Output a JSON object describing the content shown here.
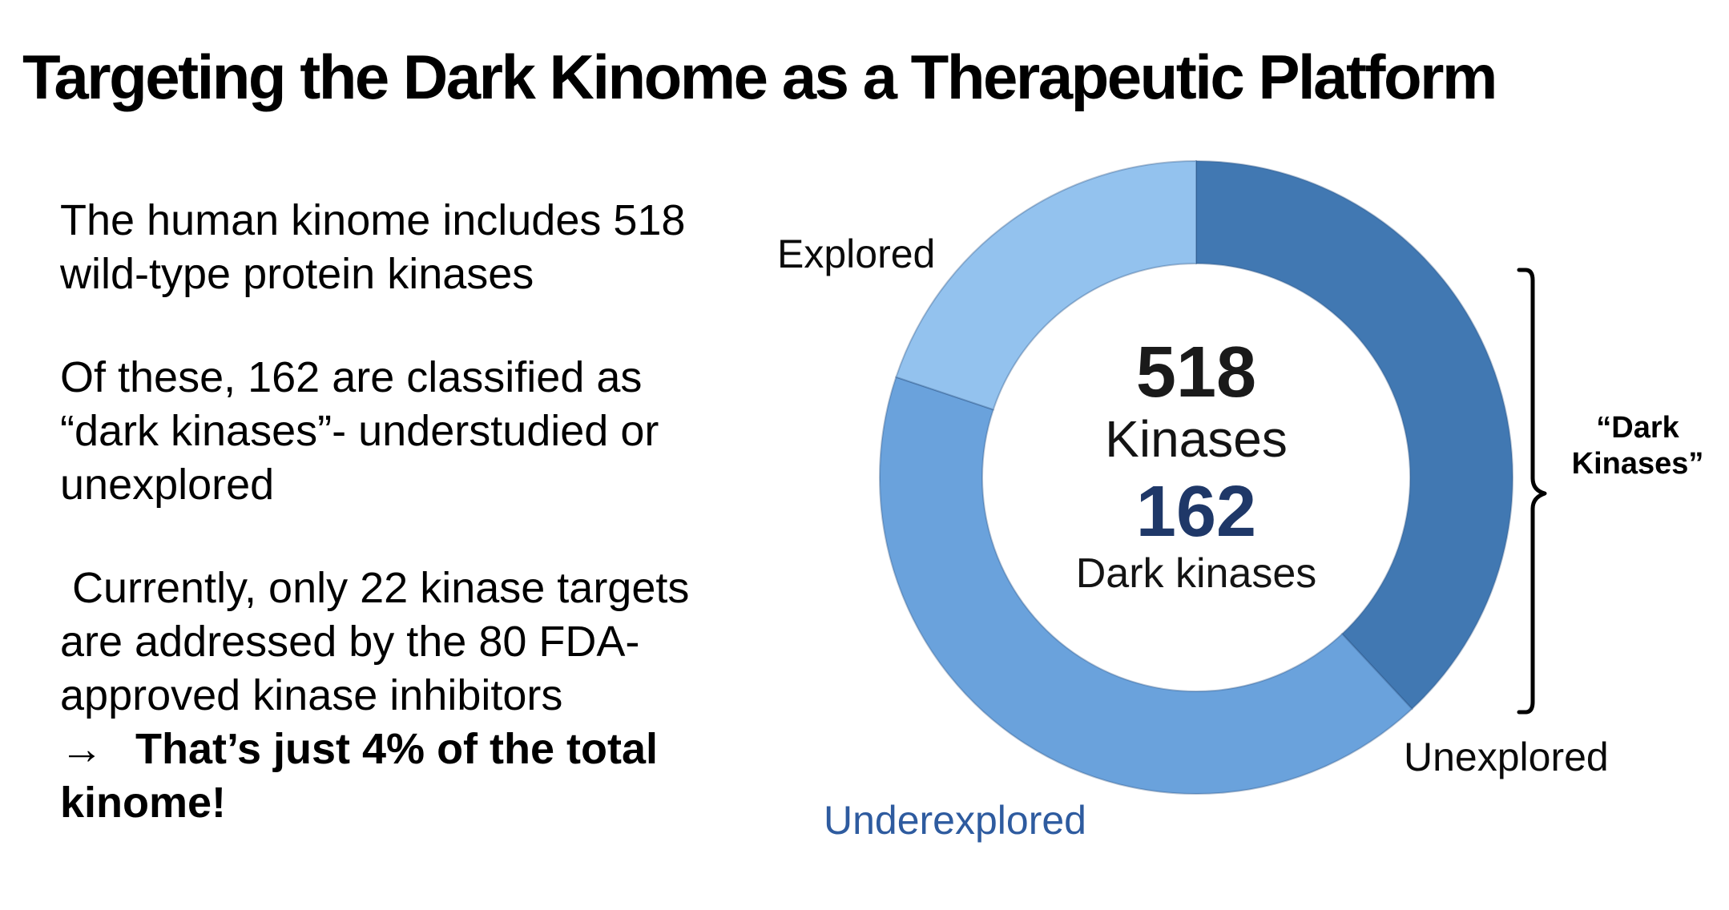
{
  "title": "Targeting the Dark Kinome as a Therapeutic Platform",
  "intro": {
    "p1": "The human kinome includes 518\nwild-type protein kinases",
    "p2": "Of these, 162 are classified as\n“dark kinases”- understudied or\nunexplored",
    "p3": " Currently, only 22 kinase targets\nare addressed by the 80 FDA-\napproved kinase inhibitors",
    "arrow": "→",
    "takeaway": "That’s just 4% of the total\nkinome!"
  },
  "chart_data": {
    "type": "pie",
    "variant": "donut",
    "total": 518,
    "units": "kinases",
    "segments": [
      {
        "label": "Unexplored",
        "start_deg": 0,
        "end_deg": 137,
        "approx_pct": 38,
        "color": "#4178B2"
      },
      {
        "label": "Underexplored",
        "start_deg": 137,
        "end_deg": 288.5,
        "approx_pct": 42,
        "color": "#6AA2DC"
      },
      {
        "label": "Explored",
        "start_deg": 288.5,
        "end_deg": 360,
        "approx_pct": 20,
        "color": "#93C2EE"
      }
    ],
    "center_text": {
      "total_value": "518",
      "total_label": "Kinases",
      "dark_value": "162",
      "dark_label": "Dark kinases"
    },
    "annotation": {
      "label": "“Dark\nKinases”"
    }
  },
  "colors": {
    "dark_value_color": "#1F3868",
    "underexplored_label_color": "#2E5B9F",
    "bracket_color": "#000000"
  }
}
